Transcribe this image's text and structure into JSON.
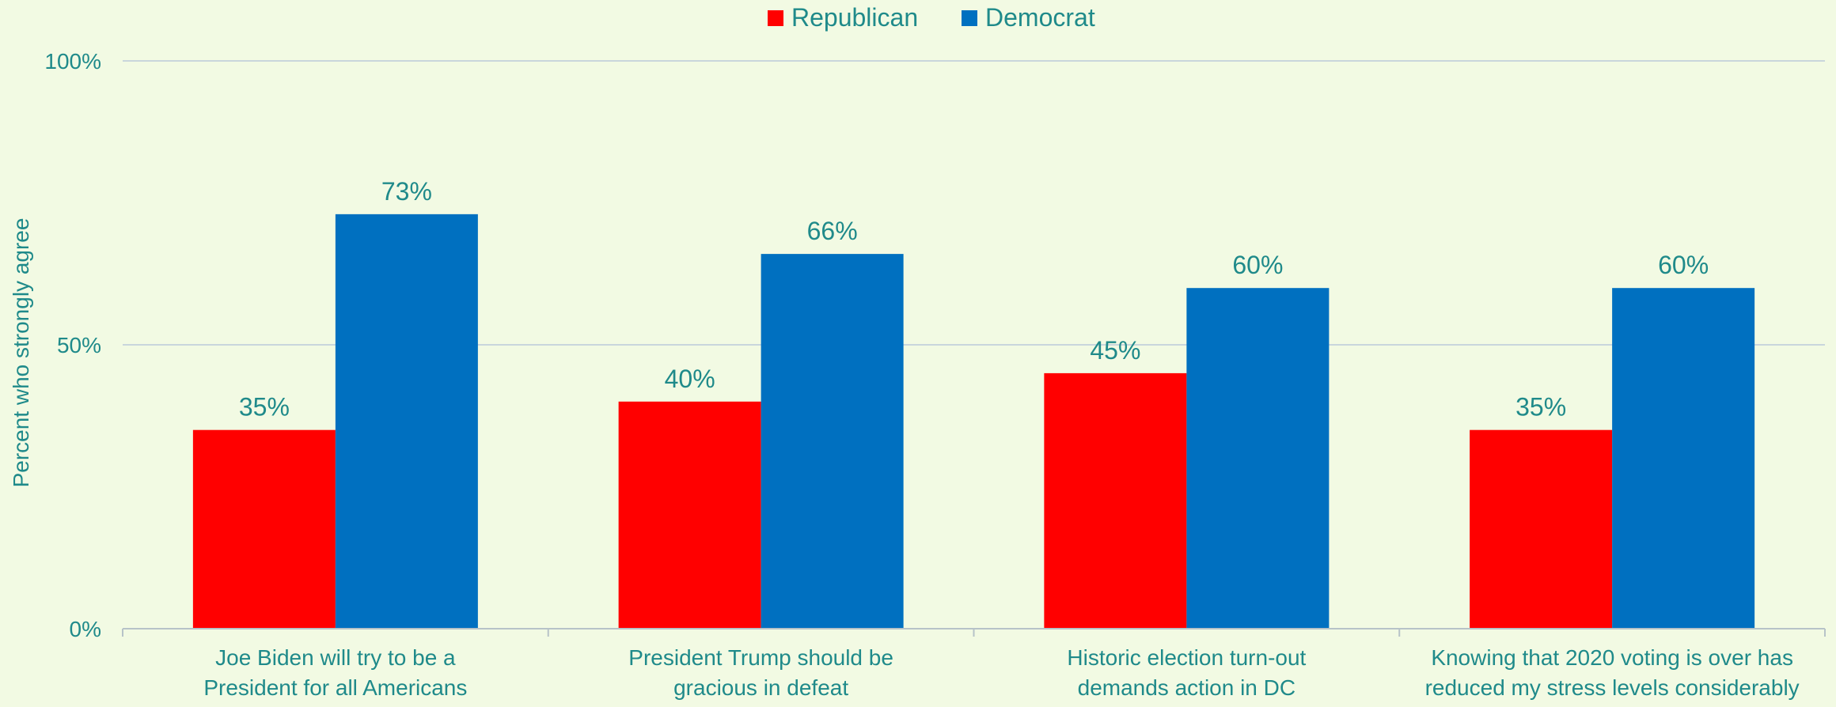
{
  "chart_data": {
    "type": "bar",
    "categories": [
      [
        "Joe Biden will try to be a",
        "President for all Americans"
      ],
      [
        "President Trump should be",
        "gracious in defeat"
      ],
      [
        "Historic election turn-out",
        "demands action in DC"
      ],
      [
        "Knowing that 2020 voting is over has",
        "reduced my stress levels considerably"
      ]
    ],
    "series": [
      {
        "name": "Republican",
        "values": [
          35,
          40,
          45,
          35
        ],
        "color": "#ff0000"
      },
      {
        "name": "Democrat",
        "values": [
          73,
          66,
          60,
          60
        ],
        "color": "#0070c0"
      }
    ],
    "data_labels": {
      "Republican": [
        "35%",
        "40%",
        "45%",
        "35%"
      ],
      "Democrat": [
        "73%",
        "66%",
        "60%",
        "60%"
      ]
    },
    "title": "",
    "xlabel": "",
    "ylabel": "Percent who strongly agree",
    "ylim": [
      0,
      100
    ],
    "yticks": [
      0,
      50,
      100
    ],
    "ytick_labels": [
      "0%",
      "50%",
      "100%"
    ],
    "grid": true,
    "legend_position": "top-center",
    "colors": {
      "background": "#f2fae3",
      "text": "#1f8a8a",
      "grid": "#c9d6dc",
      "axis": "#b7c3c8"
    }
  }
}
